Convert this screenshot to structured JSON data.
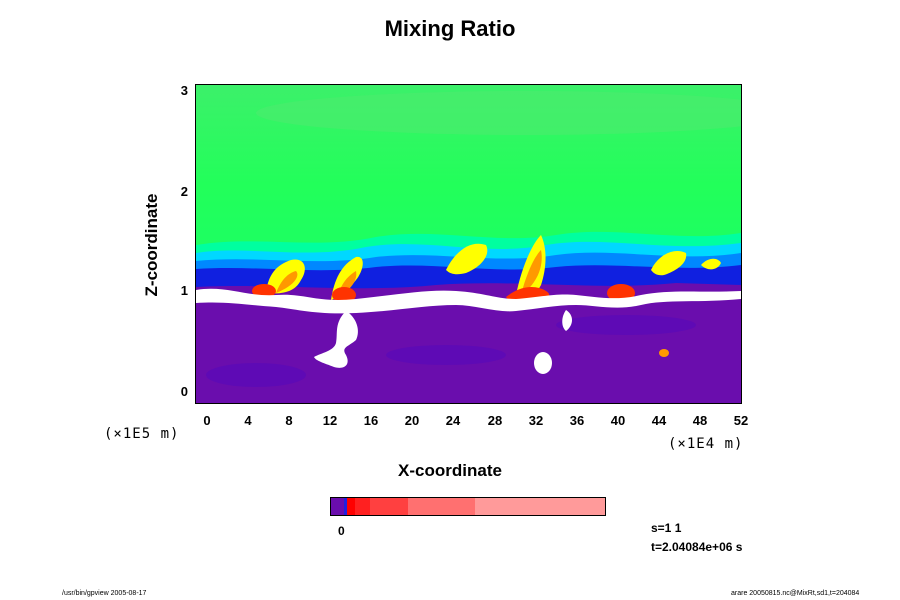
{
  "chart_data": {
    "type": "heatmap",
    "title": "Mixing Ratio",
    "xlabel": "X-coordinate",
    "ylabel": "Z-coordinate",
    "x_scale_label": "(×1E4 m)",
    "y_scale_label": "(×1E5 m)",
    "x_ticks": [
      "0",
      "4",
      "8",
      "12",
      "16",
      "20",
      "24",
      "28",
      "32",
      "36",
      "40",
      "44",
      "48",
      "52"
    ],
    "y_ticks": [
      "0",
      "1",
      "2",
      "3"
    ],
    "xlim": [
      -1,
      52
    ],
    "ylim": [
      -0.1,
      3.05
    ],
    "colorbar": {
      "tick_labels": [
        "0"
      ],
      "colors": [
        "#6a0dad",
        "#2020e0",
        "#ff0000",
        "#ff2020",
        "#ff4040",
        "#ff7070",
        "#ff9a9a"
      ]
    },
    "annotations": {
      "step": "s=1 1",
      "time": "t=2.04084e+06 s"
    },
    "field_colors": {
      "upper_layer": "#00ff66",
      "transition": [
        "#00ffa0",
        "#00d8ff",
        "#0088ff",
        "#1020e0"
      ],
      "lower_layer": "#6a0dad",
      "plumes": [
        "#ffff00",
        "#ff9900",
        "#ff3300"
      ],
      "empty": "#ffffff"
    }
  },
  "footer": {
    "left": "/usr/bin/gpview 2005-08-17",
    "right": "arare 20050815.nc@MixRt,sd1,t=204084"
  }
}
